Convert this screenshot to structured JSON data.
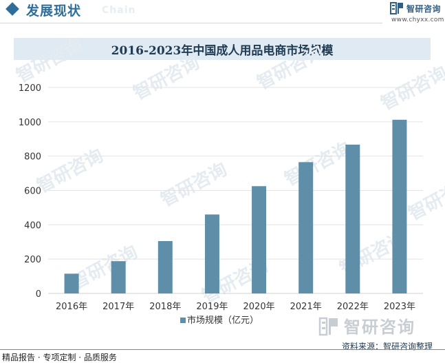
{
  "header": {
    "title": "发展现状",
    "subtitle": "Chain",
    "brand_name": "智研咨询",
    "brand_url": "www.chyxx.com",
    "accent_color": "#2f6e9b"
  },
  "chart_data": {
    "type": "bar",
    "title": "2016-2023年中国成人用品电商市场规模",
    "categories": [
      "2016年",
      "2017年",
      "2018年",
      "2019年",
      "2020年",
      "2021年",
      "2022年",
      "2023年"
    ],
    "series": [
      {
        "name": "市场规模（亿元）",
        "values": [
          115,
          188,
          305,
          460,
          625,
          765,
          867,
          1012
        ],
        "color": "#5e8ea8"
      }
    ],
    "ylim": [
      0,
      1200
    ],
    "yticks": [
      0,
      200,
      400,
      600,
      800,
      1000,
      1200
    ],
    "grid": true,
    "legend_position": "bottom"
  },
  "watermark": {
    "text": "智研咨询"
  },
  "footer": {
    "left_text": "精品报告 · 专项定制 · 品质服务",
    "source_text": "资料来源：智研咨询整理"
  }
}
